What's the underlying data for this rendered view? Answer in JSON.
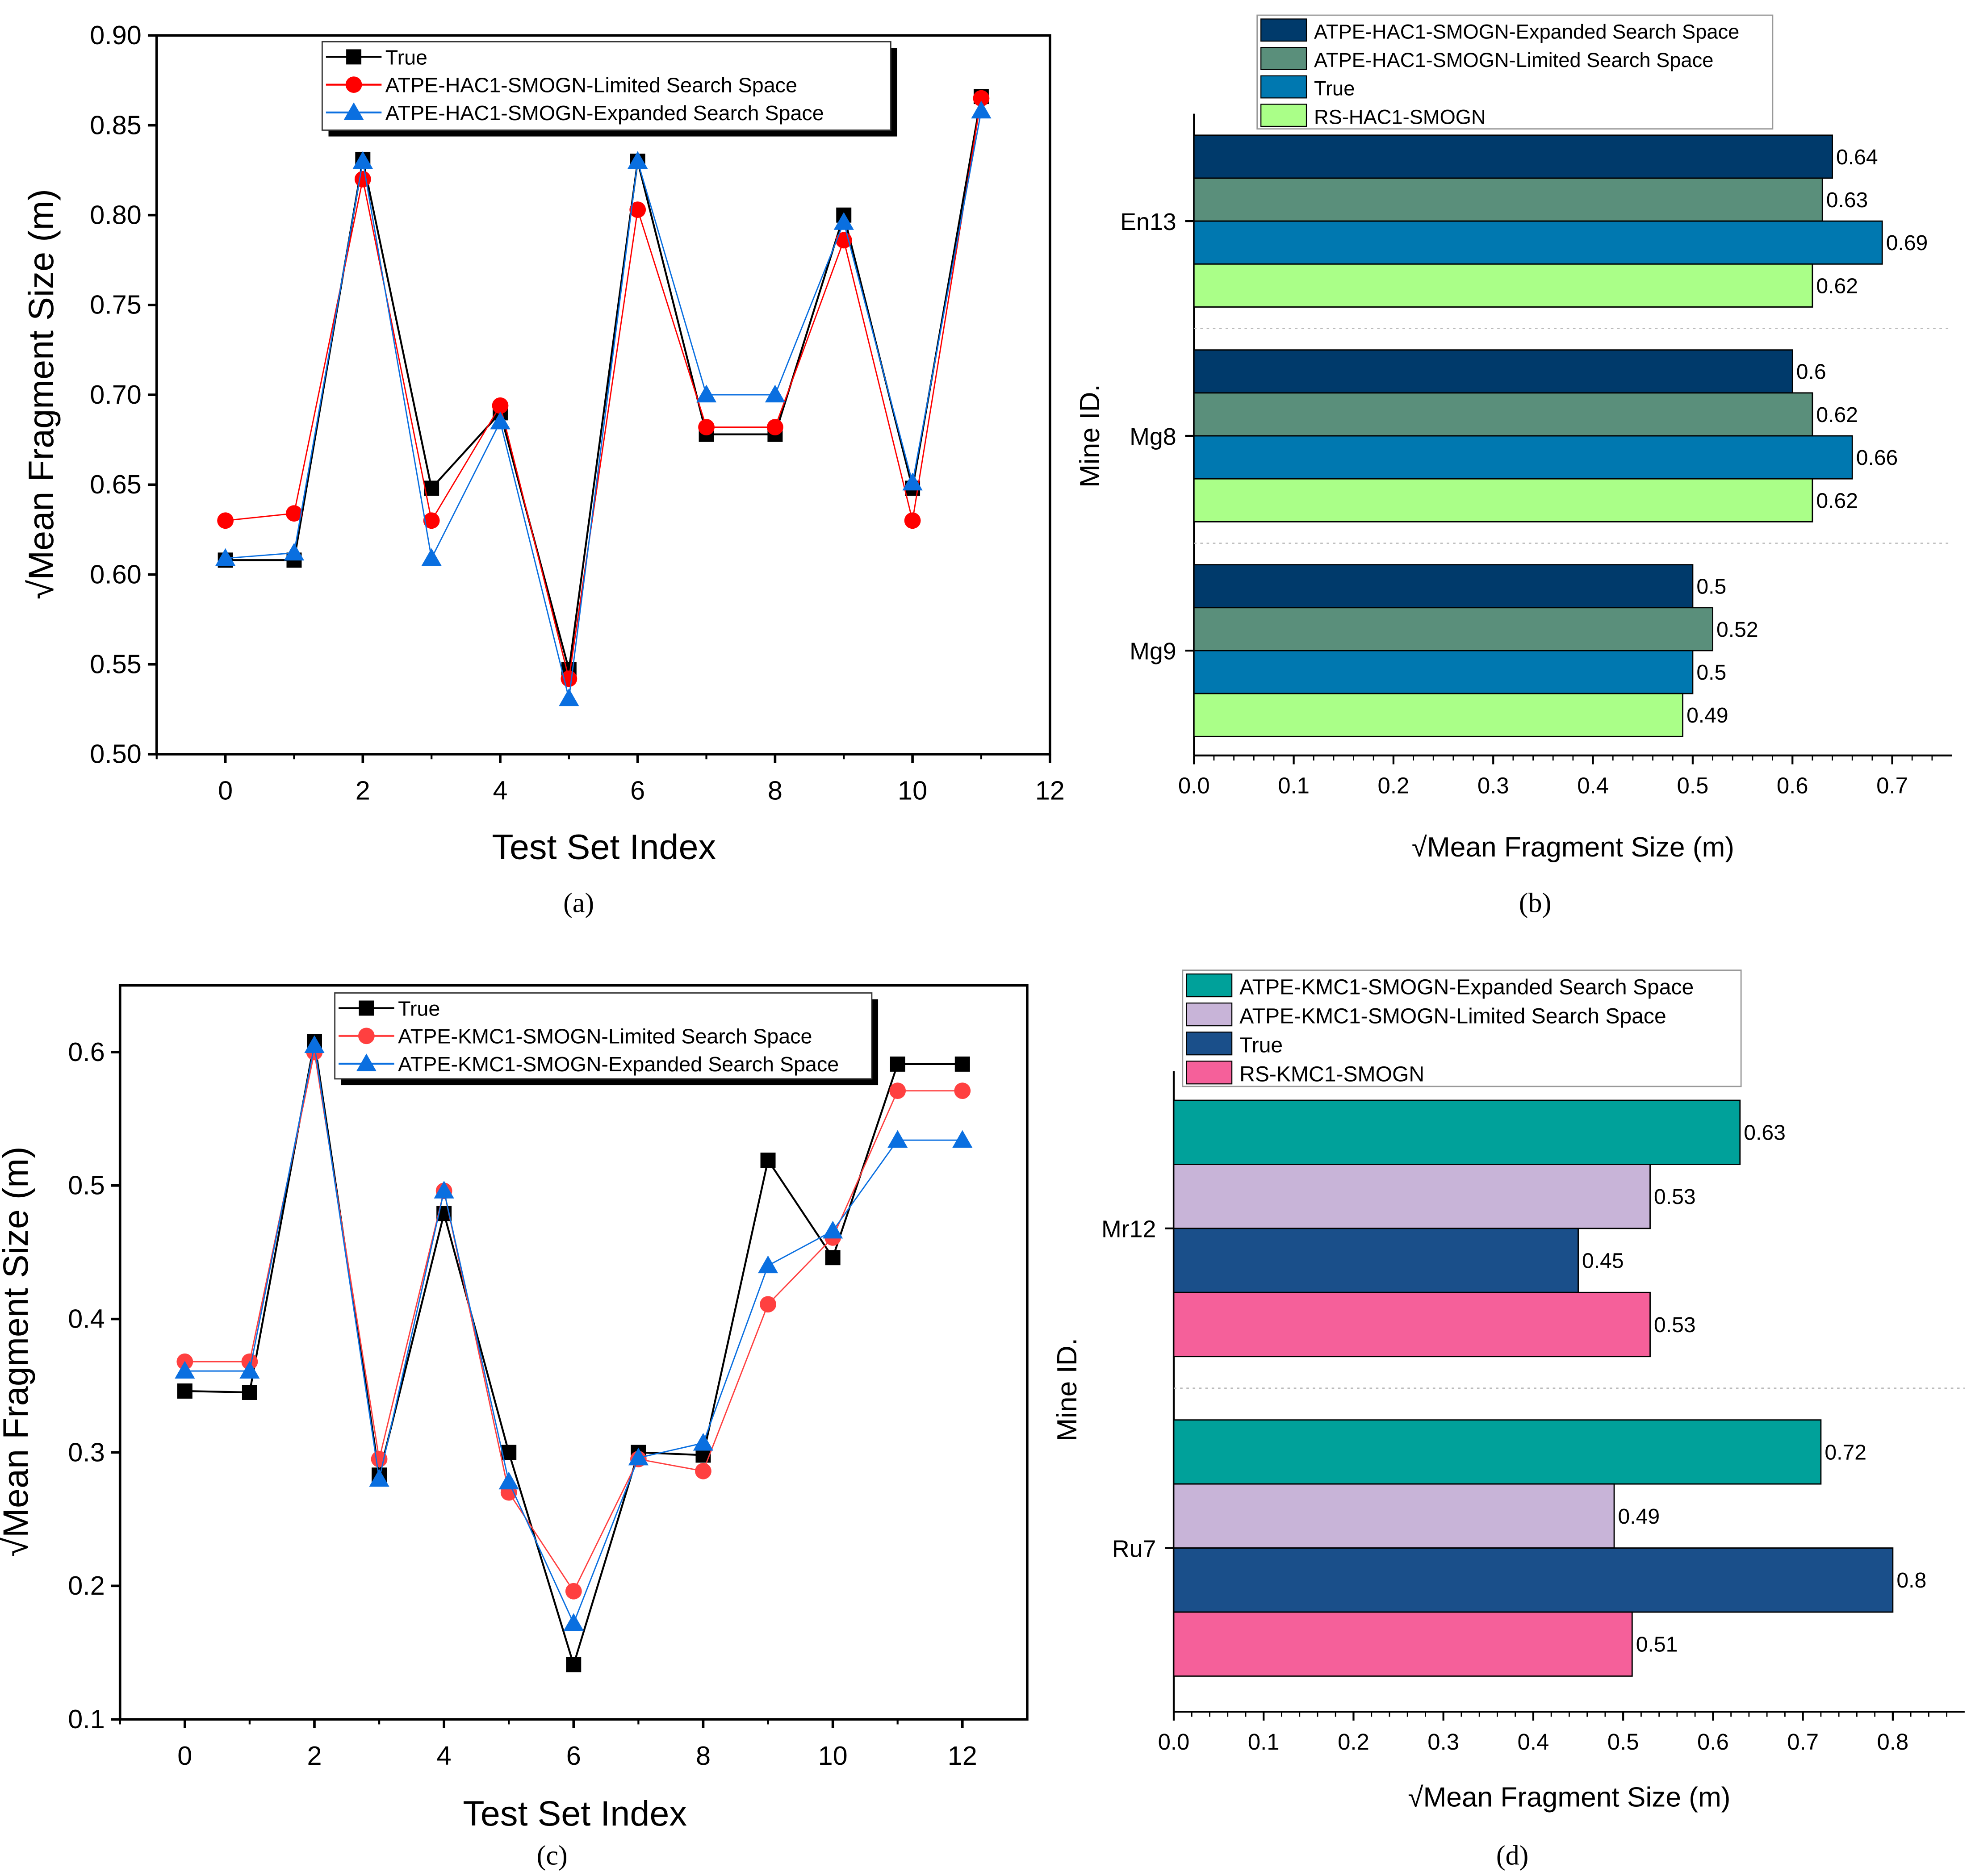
{
  "chart_data": [
    {
      "id": "a",
      "type": "line",
      "panel_label": "(a)",
      "xlabel": "Test Set Index",
      "ylabel": "√Mean Fragment Size (m)",
      "xlim": [
        -1,
        12
      ],
      "ylim": [
        0.5,
        0.9
      ],
      "xticks": [
        0,
        2,
        4,
        6,
        8,
        10,
        12
      ],
      "yticks": [
        0.5,
        0.55,
        0.6,
        0.65,
        0.7,
        0.75,
        0.8,
        0.85,
        0.9
      ],
      "legend_position": "top-center",
      "x": [
        0,
        1,
        2,
        3,
        4,
        5,
        6,
        7,
        8,
        9,
        10,
        11
      ],
      "series": [
        {
          "name": "True",
          "marker": "square",
          "color": "#000000",
          "values": [
            0.608,
            0.608,
            0.831,
            0.648,
            0.69,
            0.547,
            0.83,
            0.678,
            0.678,
            0.8,
            0.648,
            0.866
          ]
        },
        {
          "name": "ATPE-HAC1-SMOGN-Limited Search Space",
          "marker": "circle",
          "color": "#ff0000",
          "values": [
            0.63,
            0.634,
            0.82,
            0.63,
            0.694,
            0.542,
            0.803,
            0.682,
            0.682,
            0.786,
            0.63,
            0.865
          ]
        },
        {
          "name": "ATPE-HAC1-SMOGN-Expanded Search Space",
          "marker": "triangle",
          "color": "#0a6fe0",
          "values": [
            0.609,
            0.612,
            0.83,
            0.609,
            0.685,
            0.531,
            0.83,
            0.7,
            0.7,
            0.796,
            0.651,
            0.858
          ]
        }
      ]
    },
    {
      "id": "b",
      "type": "bar",
      "orientation": "horizontal",
      "panel_label": "(b)",
      "xlabel": "√Mean Fragment Size (m)",
      "ylabel": "Mine ID.",
      "xlim": [
        0,
        0.76
      ],
      "xticks": [
        0,
        0.1,
        0.2,
        0.3,
        0.4,
        0.5,
        0.6,
        0.7
      ],
      "xtick_labels": [
        "0.0",
        "0.1",
        "0.2",
        "0.3",
        "0.4",
        "0.5",
        "0.6",
        "0.7"
      ],
      "legend_position": "top",
      "categories": [
        "En13",
        "Mg8",
        "Mg9"
      ],
      "series": [
        {
          "name": "ATPE-HAC1-SMOGN-Expanded Search Space",
          "color": "#003a6b",
          "values": [
            0.64,
            0.6,
            0.5
          ],
          "labels": [
            "0.64",
            "0.6",
            "0.5"
          ]
        },
        {
          "name": "ATPE-HAC1-SMOGN-Limited Search Space",
          "color": "#5a8f7b",
          "values": [
            0.63,
            0.62,
            0.52
          ],
          "labels": [
            "0.63",
            "0.62",
            "0.52"
          ]
        },
        {
          "name": "True",
          "color": "#0078b0",
          "values": [
            0.69,
            0.66,
            0.5
          ],
          "labels": [
            "0.69",
            "0.66",
            "0.5"
          ]
        },
        {
          "name": "RS-HAC1-SMOGN",
          "color": "#aaff88",
          "values": [
            0.62,
            0.62,
            0.49
          ],
          "labels": [
            "0.62",
            "0.62",
            "0.49"
          ]
        }
      ]
    },
    {
      "id": "c",
      "type": "line",
      "panel_label": "(c)",
      "xlabel": "Test Set Index",
      "ylabel": "√Mean Fragment Size (m)",
      "xlim": [
        -1,
        13
      ],
      "ylim": [
        0.1,
        0.65
      ],
      "xticks": [
        0,
        2,
        4,
        6,
        8,
        10,
        12
      ],
      "yticks": [
        0.1,
        0.2,
        0.3,
        0.4,
        0.5,
        0.6
      ],
      "legend_position": "top-center",
      "x": [
        0,
        1,
        2,
        3,
        4,
        5,
        6,
        7,
        8,
        9,
        10,
        11,
        12
      ],
      "series": [
        {
          "name": "True",
          "marker": "square",
          "color": "#000000",
          "values": [
            0.346,
            0.345,
            0.608,
            0.283,
            0.479,
            0.3,
            0.141,
            0.3,
            0.298,
            0.519,
            0.446,
            0.591,
            0.591
          ]
        },
        {
          "name": "ATPE-KMC1-SMOGN-Limited Search Space",
          "marker": "circle",
          "color": "#ff4040",
          "values": [
            0.368,
            0.368,
            0.6,
            0.295,
            0.496,
            0.27,
            0.196,
            0.295,
            0.286,
            0.411,
            0.461,
            0.571,
            0.571
          ]
        },
        {
          "name": "ATPE-KMC1-SMOGN-Expanded Search Space",
          "marker": "triangle",
          "color": "#0a6fe0",
          "values": [
            0.361,
            0.361,
            0.605,
            0.28,
            0.496,
            0.278,
            0.172,
            0.296,
            0.307,
            0.44,
            0.466,
            0.534,
            0.534
          ]
        }
      ]
    },
    {
      "id": "d",
      "type": "bar",
      "orientation": "horizontal",
      "panel_label": "(d)",
      "xlabel": "√Mean Fragment Size (m)",
      "ylabel": "Mine ID.",
      "xlim": [
        0,
        0.88
      ],
      "xticks": [
        0,
        0.1,
        0.2,
        0.3,
        0.4,
        0.5,
        0.6,
        0.7,
        0.8
      ],
      "xtick_labels": [
        "0.0",
        "0.1",
        "0.2",
        "0.3",
        "0.4",
        "0.5",
        "0.6",
        "0.7",
        "0.8"
      ],
      "legend_position": "top",
      "categories": [
        "Mr12",
        "Ru7"
      ],
      "series": [
        {
          "name": "ATPE-KMC1-SMOGN-Expanded Search Space",
          "color": "#00a19a",
          "values": [
            0.63,
            0.72
          ],
          "labels": [
            "0.63",
            "0.72"
          ]
        },
        {
          "name": "ATPE-KMC1-SMOGN-Limited Search Space",
          "color": "#c8b4d8",
          "values": [
            0.53,
            0.49
          ],
          "labels": [
            "0.53",
            "0.49"
          ]
        },
        {
          "name": "True",
          "color": "#1a4f8a",
          "values": [
            0.45,
            0.8
          ],
          "labels": [
            "0.45",
            "0.8"
          ]
        },
        {
          "name": "RS-KMC1-SMOGN",
          "color": "#f5609a",
          "values": [
            0.53,
            0.51
          ],
          "labels": [
            "0.53",
            "0.51"
          ]
        }
      ]
    }
  ]
}
